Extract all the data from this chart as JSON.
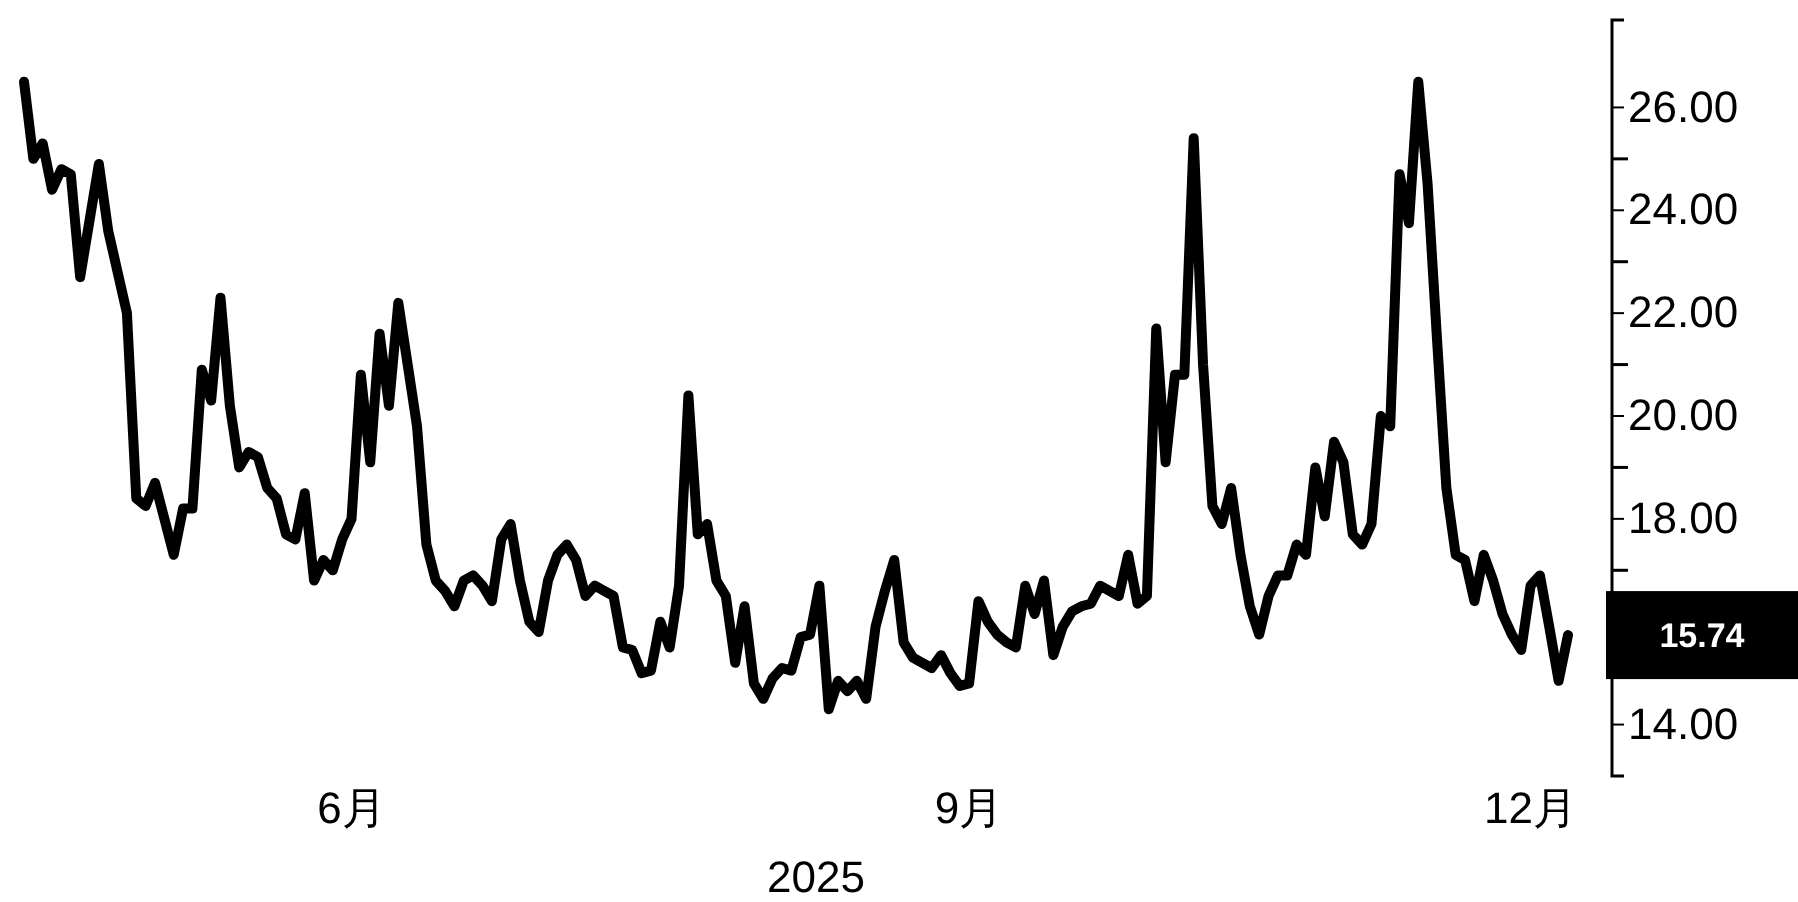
{
  "chart_data": {
    "type": "line",
    "xlabel": "2025",
    "categories": [
      null,
      null,
      null,
      null,
      null,
      null,
      null,
      null,
      null,
      null,
      null,
      null,
      null,
      null,
      null,
      null,
      null,
      null,
      null,
      null,
      null,
      null,
      null,
      null,
      null,
      null,
      null,
      null,
      null,
      null,
      null,
      null,
      null,
      null,
      null,
      "6月",
      null,
      null,
      null,
      null,
      null,
      null,
      null,
      null,
      null,
      null,
      null,
      null,
      null,
      null,
      null,
      null,
      null,
      null,
      null,
      null,
      null,
      null,
      null,
      null,
      null,
      null,
      null,
      null,
      null,
      null,
      null,
      null,
      null,
      null,
      null,
      null,
      null,
      null,
      null,
      null,
      null,
      null,
      null,
      null,
      null,
      null,
      null,
      null,
      null,
      null,
      null,
      null,
      null,
      null,
      null,
      null,
      null,
      null,
      null,
      null,
      null,
      null,
      null,
      null,
      null,
      "9月",
      null,
      null,
      null,
      null,
      null,
      null,
      null,
      null,
      null,
      null,
      null,
      null,
      null,
      null,
      null,
      null,
      null,
      null,
      null,
      null,
      null,
      null,
      null,
      null,
      null,
      null,
      null,
      null,
      null,
      null,
      null,
      null,
      null,
      null,
      null,
      null,
      null,
      null,
      null,
      null,
      null,
      null,
      null,
      null,
      null,
      null,
      null,
      null,
      null,
      null,
      null,
      null,
      null,
      null,
      null,
      null,
      null,
      null,
      null,
      "12月",
      null,
      null,
      null,
      null
    ],
    "series": [
      {
        "color": "#000000",
        "values": [
          26.5,
          25.0,
          25.3,
          24.4,
          24.8,
          24.7,
          22.7,
          23.8,
          24.9,
          23.6,
          22.8,
          22.0,
          18.4,
          18.25,
          18.7,
          18.0,
          17.3,
          18.2,
          18.2,
          20.9,
          20.3,
          22.3,
          20.2,
          19.0,
          19.3,
          19.2,
          18.6,
          18.4,
          17.7,
          17.6,
          18.5,
          16.8,
          17.2,
          17.0,
          17.6,
          18.0,
          20.8,
          19.1,
          21.6,
          20.2,
          22.2,
          21.0,
          19.8,
          17.5,
          16.8,
          16.6,
          16.3,
          16.8,
          16.9,
          16.7,
          16.4,
          17.6,
          17.9,
          16.8,
          16.0,
          15.8,
          16.8,
          17.3,
          17.5,
          17.2,
          16.5,
          16.7,
          16.6,
          16.5,
          15.5,
          15.45,
          15.0,
          15.05,
          16.0,
          15.5,
          16.7,
          20.4,
          17.7,
          17.9,
          16.8,
          16.5,
          15.2,
          16.3,
          14.8,
          14.5,
          14.9,
          15.1,
          15.05,
          15.7,
          15.75,
          16.7,
          14.3,
          14.85,
          14.65,
          14.85,
          14.5,
          15.9,
          16.6,
          17.2,
          15.6,
          15.3,
          15.2,
          15.1,
          15.35,
          15.0,
          14.75,
          14.8,
          16.4,
          16.0,
          15.75,
          15.6,
          15.5,
          16.7,
          16.15,
          16.8,
          15.35,
          15.9,
          16.2,
          16.3,
          16.35,
          16.7,
          16.6,
          16.5,
          17.3,
          16.35,
          16.5,
          21.7,
          19.1,
          20.8,
          20.8,
          25.4,
          21.0,
          18.25,
          17.9,
          18.6,
          17.3,
          16.3,
          15.75,
          16.5,
          16.9,
          16.9,
          17.5,
          17.3,
          19.0,
          18.05,
          19.5,
          19.1,
          17.7,
          17.5,
          17.9,
          20.0,
          19.8,
          24.7,
          23.75,
          26.5,
          24.5,
          21.5,
          18.6,
          17.3,
          17.2,
          16.4,
          17.3,
          16.8,
          16.15,
          15.75,
          15.45,
          16.7,
          16.9,
          15.9,
          14.85,
          15.74
        ]
      }
    ],
    "ylim": [
      13,
      27.7
    ],
    "yticks": [
      {
        "value": 14,
        "label": "14.00"
      },
      {
        "value": 18,
        "label": "18.00"
      },
      {
        "value": 20,
        "label": "20.00"
      },
      {
        "value": 22,
        "label": "22.00"
      },
      {
        "value": 24,
        "label": "24.00"
      },
      {
        "value": 26,
        "label": "26.00"
      }
    ],
    "line_style": "solid",
    "annotations": [
      "15.74"
    ]
  }
}
